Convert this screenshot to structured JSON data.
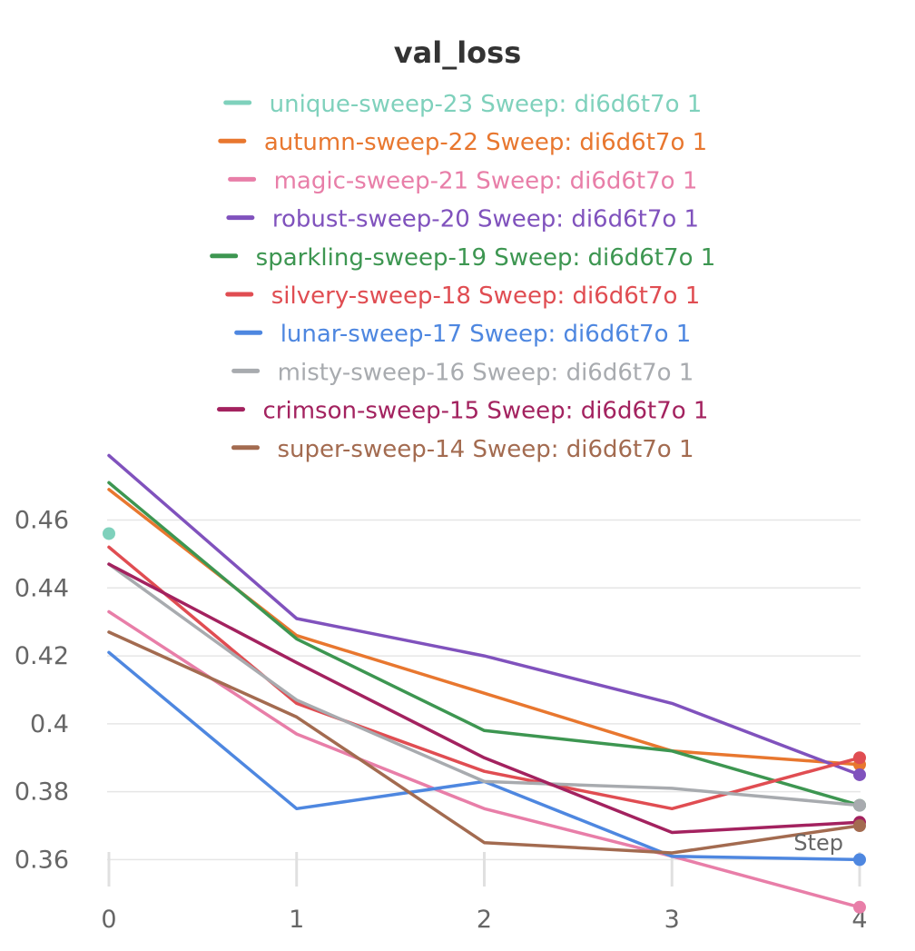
{
  "chart_data": {
    "type": "line",
    "title": "val_loss",
    "xlabel": "Step",
    "ylabel": "",
    "x": [
      0,
      1,
      2,
      3,
      4
    ],
    "x_ticks": [
      "0",
      "1",
      "2",
      "3",
      "4"
    ],
    "y_ticks": [
      "0.36",
      "0.38",
      "0.4",
      "0.42",
      "0.44",
      "0.46"
    ],
    "ylim": [
      0.343,
      0.481
    ],
    "xlim": [
      0,
      4
    ],
    "grid": true,
    "legend_position": "top",
    "series": [
      {
        "name": "unique-sweep-23 Sweep: di6d6t7o 1",
        "color": "#7fd1bc",
        "values": [
          0.456,
          null,
          null,
          null,
          null
        ]
      },
      {
        "name": "autumn-sweep-22 Sweep: di6d6t7o 1",
        "color": "#e8772f",
        "values": [
          0.469,
          0.426,
          0.409,
          0.392,
          0.388
        ]
      },
      {
        "name": "magic-sweep-21 Sweep: di6d6t7o 1",
        "color": "#e87ea8",
        "values": [
          0.433,
          0.397,
          0.375,
          0.361,
          0.346
        ]
      },
      {
        "name": "robust-sweep-20 Sweep: di6d6t7o 1",
        "color": "#8052bd",
        "values": [
          0.479,
          0.431,
          0.42,
          0.406,
          0.385
        ]
      },
      {
        "name": "sparkling-sweep-19 Sweep: di6d6t7o 1",
        "color": "#3d9651",
        "values": [
          0.471,
          0.425,
          0.398,
          0.392,
          0.376
        ]
      },
      {
        "name": "silvery-sweep-18 Sweep: di6d6t7o 1",
        "color": "#e04d52",
        "values": [
          0.452,
          0.406,
          0.386,
          0.375,
          0.39
        ]
      },
      {
        "name": "lunar-sweep-17 Sweep: di6d6t7o 1",
        "color": "#4e87e0",
        "values": [
          0.421,
          0.375,
          0.383,
          0.361,
          0.36
        ]
      },
      {
        "name": "misty-sweep-16 Sweep: di6d6t7o 1",
        "color": "#a8abaf",
        "values": [
          0.447,
          0.407,
          0.383,
          0.381,
          0.376
        ]
      },
      {
        "name": "crimson-sweep-15 Sweep: di6d6t7o 1",
        "color": "#a3225f",
        "values": [
          0.447,
          0.418,
          0.39,
          0.368,
          0.371
        ]
      },
      {
        "name": "super-sweep-14 Sweep: di6d6t7o 1",
        "color": "#a36b50",
        "values": [
          0.427,
          0.402,
          0.365,
          0.362,
          0.37
        ]
      }
    ]
  }
}
